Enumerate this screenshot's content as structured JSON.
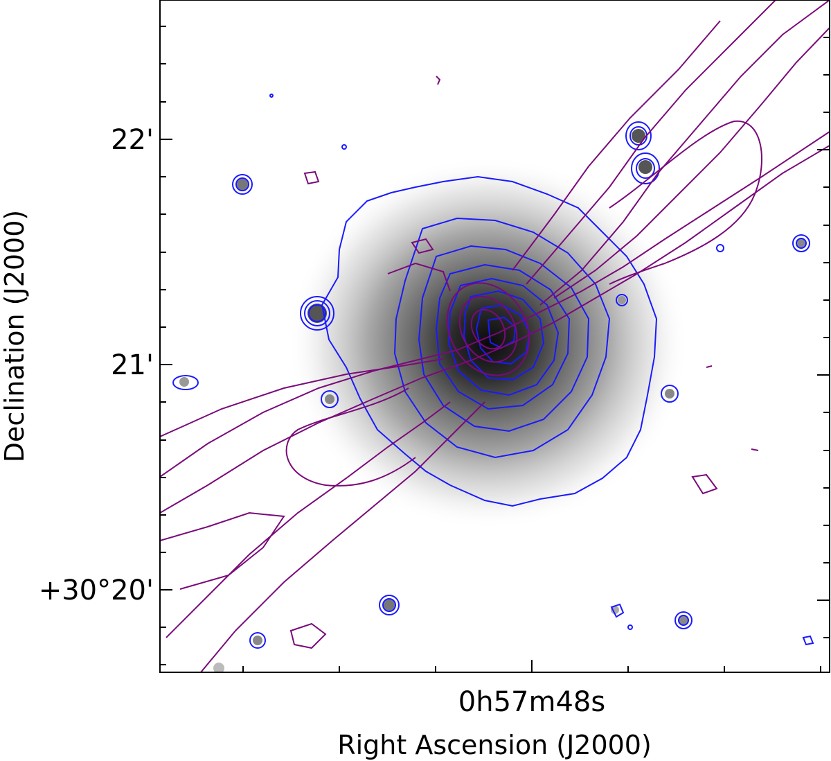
{
  "figure": {
    "y_axis_label": "Declination (J2000)",
    "x_axis_label": "Right Ascension (J2000)",
    "x_tick_labels": [
      "0h57m48s"
    ],
    "y_tick_labels": [
      "22'",
      "21'",
      "+30°20'"
    ],
    "colors": {
      "xray_contours": "#1a1aff",
      "radio_contours": "#7a0a7a",
      "background_image": "greyscale"
    }
  }
}
